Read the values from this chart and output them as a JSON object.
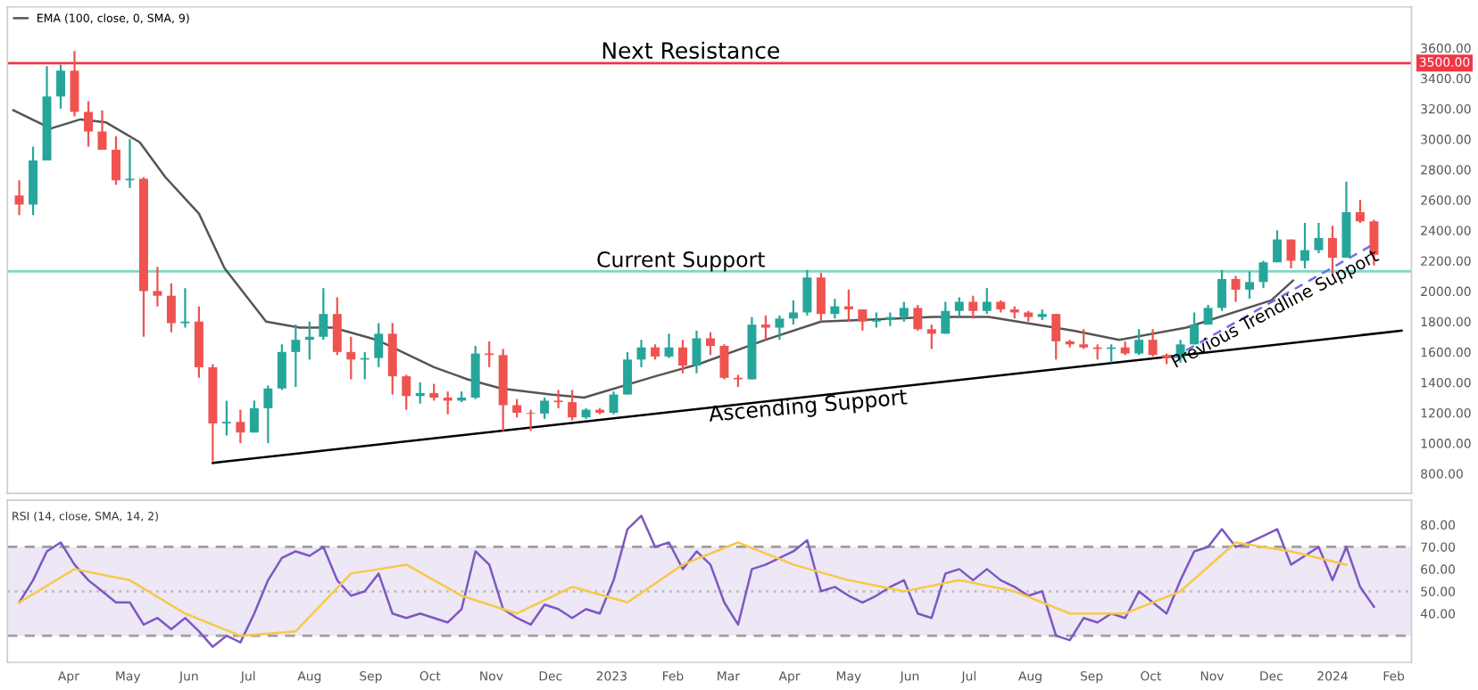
{
  "chart_data": [
    {
      "type": "candlestick",
      "x": [
        "2022-03-07",
        "2022-03-14",
        "2022-03-21",
        "2022-03-28",
        "2022-04-04",
        "2022-04-11",
        "2022-04-18",
        "2022-04-25",
        "2022-05-02",
        "2022-05-09",
        "2022-05-16",
        "2022-05-23",
        "2022-05-30",
        "2022-06-06",
        "2022-06-13",
        "2022-06-20",
        "2022-06-27",
        "2022-07-04",
        "2022-07-11",
        "2022-07-18",
        "2022-07-25",
        "2022-08-01",
        "2022-08-08",
        "2022-08-15",
        "2022-08-22",
        "2022-08-29",
        "2022-09-05",
        "2022-09-12",
        "2022-09-19",
        "2022-09-26",
        "2022-10-03",
        "2022-10-10",
        "2022-10-17",
        "2022-10-24",
        "2022-10-31",
        "2022-11-07",
        "2022-11-14",
        "2022-11-21",
        "2022-11-28",
        "2022-12-05",
        "2022-12-12",
        "2022-12-19",
        "2022-12-26",
        "2023-01-02",
        "2023-01-09",
        "2023-01-16",
        "2023-01-23",
        "2023-01-30",
        "2023-02-06",
        "2023-02-13",
        "2023-02-20",
        "2023-02-27",
        "2023-03-06",
        "2023-03-13",
        "2023-03-20",
        "2023-03-27",
        "2023-04-03",
        "2023-04-10",
        "2023-04-17",
        "2023-04-24",
        "2023-05-01",
        "2023-05-08",
        "2023-05-15",
        "2023-05-22",
        "2023-05-29",
        "2023-06-05",
        "2023-06-12",
        "2023-06-19",
        "2023-06-26",
        "2023-07-03",
        "2023-07-10",
        "2023-07-17",
        "2023-07-24",
        "2023-07-31",
        "2023-08-07",
        "2023-08-14",
        "2023-08-21",
        "2023-08-28",
        "2023-09-04",
        "2023-09-11",
        "2023-09-18",
        "2023-09-25",
        "2023-10-02",
        "2023-10-09",
        "2023-10-16",
        "2023-10-23",
        "2023-10-30",
        "2023-11-06",
        "2023-11-13",
        "2023-11-20",
        "2023-11-27",
        "2023-12-04",
        "2023-12-11",
        "2023-12-18",
        "2023-12-25",
        "2024-01-01",
        "2024-01-08",
        "2024-01-15",
        "2024-01-22"
      ],
      "ohlc": [
        [
          2630,
          2730,
          2500,
          2570
        ],
        [
          2570,
          2950,
          2500,
          2860
        ],
        [
          2860,
          3480,
          2860,
          3280
        ],
        [
          3280,
          3490,
          3200,
          3450
        ],
        [
          3450,
          3580,
          3150,
          3180
        ],
        [
          3180,
          3250,
          2950,
          3050
        ],
        [
          3050,
          3190,
          2930,
          2930
        ],
        [
          2930,
          3020,
          2700,
          2730
        ],
        [
          2730,
          3000,
          2680,
          2740
        ],
        [
          2740,
          2750,
          1700,
          2000
        ],
        [
          2000,
          2160,
          1900,
          1970
        ],
        [
          1970,
          2050,
          1730,
          1790
        ],
        [
          1790,
          2020,
          1760,
          1800
        ],
        [
          1800,
          1900,
          1430,
          1500
        ],
        [
          1500,
          1520,
          880,
          1130
        ],
        [
          1130,
          1280,
          1050,
          1140
        ],
        [
          1140,
          1220,
          1000,
          1070
        ],
        [
          1070,
          1280,
          1070,
          1230
        ],
        [
          1230,
          1380,
          1000,
          1360
        ],
        [
          1360,
          1650,
          1350,
          1600
        ],
        [
          1600,
          1780,
          1370,
          1680
        ],
        [
          1680,
          1800,
          1550,
          1700
        ],
        [
          1700,
          2020,
          1680,
          1850
        ],
        [
          1850,
          1960,
          1580,
          1600
        ],
        [
          1600,
          1700,
          1420,
          1550
        ],
        [
          1550,
          1600,
          1420,
          1560
        ],
        [
          1560,
          1790,
          1500,
          1720
        ],
        [
          1720,
          1790,
          1320,
          1440
        ],
        [
          1440,
          1450,
          1220,
          1310
        ],
        [
          1310,
          1400,
          1260,
          1330
        ],
        [
          1330,
          1390,
          1280,
          1300
        ],
        [
          1300,
          1340,
          1190,
          1280
        ],
        [
          1280,
          1340,
          1270,
          1300
        ],
        [
          1300,
          1640,
          1290,
          1590
        ],
        [
          1590,
          1670,
          1500,
          1580
        ],
        [
          1580,
          1620,
          1080,
          1250
        ],
        [
          1250,
          1290,
          1170,
          1200
        ],
        [
          1200,
          1220,
          1080,
          1195
        ],
        [
          1195,
          1300,
          1160,
          1280
        ],
        [
          1280,
          1350,
          1230,
          1270
        ],
        [
          1270,
          1350,
          1150,
          1170
        ],
        [
          1170,
          1230,
          1160,
          1220
        ],
        [
          1220,
          1230,
          1190,
          1200
        ],
        [
          1200,
          1340,
          1190,
          1320
        ],
        [
          1320,
          1600,
          1320,
          1550
        ],
        [
          1550,
          1680,
          1500,
          1630
        ],
        [
          1630,
          1650,
          1550,
          1570
        ],
        [
          1570,
          1720,
          1560,
          1630
        ],
        [
          1630,
          1680,
          1460,
          1510
        ],
        [
          1510,
          1740,
          1460,
          1690
        ],
        [
          1690,
          1730,
          1580,
          1640
        ],
        [
          1640,
          1650,
          1420,
          1430
        ],
        [
          1430,
          1450,
          1370,
          1420
        ],
        [
          1420,
          1830,
          1420,
          1780
        ],
        [
          1780,
          1840,
          1680,
          1760
        ],
        [
          1760,
          1840,
          1680,
          1820
        ],
        [
          1820,
          1940,
          1780,
          1860
        ],
        [
          1860,
          2140,
          1840,
          2090
        ],
        [
          2090,
          2120,
          1800,
          1850
        ],
        [
          1850,
          1950,
          1820,
          1900
        ],
        [
          1900,
          2010,
          1800,
          1880
        ],
        [
          1880,
          1880,
          1740,
          1800
        ],
        [
          1800,
          1860,
          1760,
          1810
        ],
        [
          1810,
          1860,
          1770,
          1830
        ],
        [
          1830,
          1930,
          1800,
          1890
        ],
        [
          1890,
          1910,
          1740,
          1750
        ],
        [
          1750,
          1780,
          1620,
          1720
        ],
        [
          1720,
          1930,
          1720,
          1870
        ],
        [
          1870,
          1960,
          1830,
          1930
        ],
        [
          1930,
          1970,
          1820,
          1870
        ],
        [
          1870,
          2020,
          1850,
          1930
        ],
        [
          1930,
          1940,
          1860,
          1880
        ],
        [
          1880,
          1900,
          1820,
          1860
        ],
        [
          1860,
          1870,
          1800,
          1830
        ],
        [
          1830,
          1880,
          1810,
          1850
        ],
        [
          1850,
          1850,
          1550,
          1670
        ],
        [
          1670,
          1680,
          1630,
          1650
        ],
        [
          1650,
          1750,
          1620,
          1630
        ],
        [
          1630,
          1650,
          1550,
          1620
        ],
        [
          1620,
          1650,
          1530,
          1630
        ],
        [
          1630,
          1670,
          1580,
          1590
        ],
        [
          1590,
          1750,
          1580,
          1680
        ],
        [
          1680,
          1750,
          1570,
          1580
        ],
        [
          1580,
          1590,
          1520,
          1560
        ],
        [
          1560,
          1680,
          1530,
          1650
        ],
        [
          1650,
          1860,
          1650,
          1780
        ],
        [
          1780,
          1910,
          1780,
          1890
        ],
        [
          1890,
          2140,
          1870,
          2080
        ],
        [
          2080,
          2100,
          1930,
          2010
        ],
        [
          2010,
          2130,
          1950,
          2060
        ],
        [
          2060,
          2200,
          2020,
          2190
        ],
        [
          2190,
          2400,
          2190,
          2340
        ],
        [
          2340,
          2340,
          2150,
          2200
        ],
        [
          2200,
          2450,
          2150,
          2270
        ],
        [
          2270,
          2450,
          2250,
          2350
        ],
        [
          2350,
          2430,
          2100,
          2220
        ],
        [
          2220,
          2720,
          2220,
          2520
        ],
        [
          2520,
          2600,
          2450,
          2460
        ],
        [
          2460,
          2470,
          2170,
          2240
        ]
      ],
      "colors": [
        "#ef5350",
        "#26a69a",
        "#26a69a",
        "#26a69a",
        "#ef5350",
        "#ef5350",
        "#ef5350",
        "#ef5350",
        "#26a69a",
        "#ef5350",
        "#ef5350",
        "#ef5350",
        "#26a69a",
        "#ef5350",
        "#ef5350",
        "#26a69a",
        "#ef5350",
        "#26a69a",
        "#26a69a",
        "#26a69a",
        "#26a69a",
        "#26a69a",
        "#26a69a",
        "#ef5350",
        "#ef5350",
        "#26a69a",
        "#26a69a",
        "#ef5350",
        "#ef5350",
        "#26a69a",
        "#ef5350",
        "#ef5350",
        "#26a69a",
        "#26a69a",
        "#ef5350",
        "#ef5350",
        "#ef5350",
        "#ef5350",
        "#26a69a",
        "#ef5350",
        "#ef5350",
        "#26a69a",
        "#ef5350",
        "#26a69a",
        "#26a69a",
        "#26a69a",
        "#ef5350",
        "#26a69a",
        "#ef5350",
        "#26a69a",
        "#ef5350",
        "#ef5350",
        "#ef5350",
        "#26a69a",
        "#ef5350",
        "#26a69a",
        "#26a69a",
        "#26a69a",
        "#ef5350",
        "#26a69a",
        "#ef5350",
        "#ef5350",
        "#26a69a",
        "#26a69a",
        "#26a69a",
        "#ef5350",
        "#ef5350",
        "#26a69a",
        "#26a69a",
        "#ef5350",
        "#26a69a",
        "#ef5350",
        "#ef5350",
        "#ef5350",
        "#26a69a",
        "#ef5350",
        "#ef5350",
        "#ef5350",
        "#ef5350",
        "#26a69a",
        "#ef5350",
        "#26a69a",
        "#ef5350",
        "#ef5350",
        "#26a69a",
        "#26a69a",
        "#26a69a",
        "#26a69a",
        "#ef5350",
        "#26a69a",
        "#26a69a",
        "#26a69a",
        "#ef5350",
        "#26a69a",
        "#26a69a",
        "#ef5350",
        "#26a69a",
        "#ef5350",
        "#ef5350"
      ],
      "series": [
        {
          "type": "line",
          "name": "EMA (100, close, 0, SMA, 9)",
          "color": "#555555",
          "x": [
            "2022-03-04",
            "2022-03-23",
            "2022-04-07",
            "2022-04-20",
            "2022-05-07",
            "2022-05-20",
            "2022-06-06",
            "2022-06-19",
            "2022-07-10",
            "2022-07-27",
            "2022-08-13",
            "2022-09-04",
            "2022-10-03",
            "2022-10-20",
            "2022-11-06",
            "2022-12-01",
            "2022-12-18",
            "2023-01-23",
            "2023-02-14",
            "2023-03-20",
            "2023-04-17",
            "2023-06-13",
            "2023-07-11",
            "2023-08-23",
            "2023-09-15",
            "2023-10-19",
            "2023-12-01",
            "2023-12-12"
          ],
          "values": [
            3190,
            3070,
            3130,
            3110,
            2980,
            2750,
            2510,
            2150,
            1800,
            1760,
            1760,
            1680,
            1500,
            1420,
            1360,
            1320,
            1300,
            1440,
            1520,
            1680,
            1800,
            1830,
            1830,
            1740,
            1680,
            1760,
            1940,
            2070
          ]
        },
        {
          "type": "line",
          "color": "#000000",
          "x": [
            "2022-06-13",
            "2024-02-05"
          ],
          "values": [
            870,
            1740
          ]
        },
        {
          "type": "line",
          "color": "#6f6fe0",
          "line_style": "dashed",
          "x": [
            "2023-10-12",
            "2024-01-22"
          ],
          "values": [
            1560,
            2310
          ]
        }
      ],
      "ref_lines": [
        {
          "axis": "y",
          "value": 3500,
          "label": "3500.00",
          "color": "#f23645"
        },
        {
          "axis": "y",
          "value": 2130,
          "color": "#7fd6c4"
        }
      ],
      "annotations": [
        {
          "text": "Next Resistance",
          "x": "2023-02-10",
          "y": 3500
        },
        {
          "text": "Current Support",
          "x": "2023-02-05",
          "y": 2130
        },
        {
          "text": "Ascending Support",
          "x": "2023-04-10",
          "y": 1305
        },
        {
          "text": "Previous Trendline Support",
          "x": "2023-12-01",
          "y": 1926
        }
      ],
      "xlim": [
        "2022-03-01",
        "2024-02-10"
      ],
      "ylim": [
        670,
        3870
      ],
      "yticks": [
        {
          "value": 800,
          "label": "800.00"
        },
        {
          "value": 1000,
          "label": "1000.00"
        },
        {
          "value": 1200,
          "label": "1200.00"
        },
        {
          "value": 1400,
          "label": "1400.00"
        },
        {
          "value": 1600,
          "label": "1600.00"
        },
        {
          "value": 1800,
          "label": "1800.00"
        },
        {
          "value": 2000,
          "label": "2000.00"
        },
        {
          "value": 2200,
          "label": "2200.00"
        },
        {
          "value": 2400,
          "label": "2400.00"
        },
        {
          "value": 2600,
          "label": "2600.00"
        },
        {
          "value": 2800,
          "label": "2800.00"
        },
        {
          "value": 3000,
          "label": "3000.00"
        },
        {
          "value": 3200,
          "label": "3200.00"
        },
        {
          "value": 3400,
          "label": "3400.00"
        },
        {
          "value": 3600,
          "label": "3600.00"
        }
      ],
      "tick_labels": "y",
      "legend": "top left"
    },
    {
      "type": "line",
      "title": "RSI (14, close, SMA, 14, 2)",
      "x": [
        "2022-03-07",
        "2022-03-14",
        "2022-03-21",
        "2022-03-28",
        "2022-04-04",
        "2022-04-11",
        "2022-04-18",
        "2022-04-25",
        "2022-05-02",
        "2022-05-09",
        "2022-05-16",
        "2022-05-23",
        "2022-05-30",
        "2022-06-06",
        "2022-06-13",
        "2022-06-20",
        "2022-06-27",
        "2022-07-04",
        "2022-07-11",
        "2022-07-18",
        "2022-07-25",
        "2022-08-01",
        "2022-08-08",
        "2022-08-15",
        "2022-08-22",
        "2022-08-29",
        "2022-09-05",
        "2022-09-12",
        "2022-09-19",
        "2022-09-26",
        "2022-10-03",
        "2022-10-10",
        "2022-10-17",
        "2022-10-24",
        "2022-10-31",
        "2022-11-07",
        "2022-11-14",
        "2022-11-21",
        "2022-11-28",
        "2022-12-05",
        "2022-12-12",
        "2022-12-19",
        "2022-12-26",
        "2023-01-02",
        "2023-01-09",
        "2023-01-16",
        "2023-01-23",
        "2023-01-30",
        "2023-02-06",
        "2023-02-13",
        "2023-02-20",
        "2023-02-27",
        "2023-03-06",
        "2023-03-13",
        "2023-03-20",
        "2023-03-27",
        "2023-04-03",
        "2023-04-10",
        "2023-04-17",
        "2023-04-24",
        "2023-05-01",
        "2023-05-08",
        "2023-05-15",
        "2023-05-22",
        "2023-05-29",
        "2023-06-05",
        "2023-06-12",
        "2023-06-19",
        "2023-06-26",
        "2023-07-03",
        "2023-07-10",
        "2023-07-17",
        "2023-07-24",
        "2023-07-31",
        "2023-08-07",
        "2023-08-14",
        "2023-08-21",
        "2023-08-28",
        "2023-09-04",
        "2023-09-11",
        "2023-09-18",
        "2023-09-25",
        "2023-10-02",
        "2023-10-09",
        "2023-10-16",
        "2023-10-23",
        "2023-10-30",
        "2023-11-06",
        "2023-11-13",
        "2023-11-20",
        "2023-11-27",
        "2023-12-04",
        "2023-12-11",
        "2023-12-18",
        "2023-12-25",
        "2024-01-01",
        "2024-01-08",
        "2024-01-15",
        "2024-01-22"
      ],
      "series": [
        {
          "color": "#7e57c2",
          "values": [
            45,
            55,
            68,
            72,
            62,
            55,
            50,
            45,
            45,
            35,
            38,
            33,
            38,
            32,
            25,
            30,
            27,
            40,
            55,
            65,
            68,
            66,
            70,
            55,
            48,
            50,
            58,
            40,
            38,
            40,
            38,
            36,
            42,
            68,
            62,
            42,
            38,
            35,
            44,
            42,
            38,
            42,
            40,
            55,
            78,
            84,
            70,
            72,
            60,
            68,
            62,
            45,
            35,
            60,
            62,
            65,
            68,
            73,
            50,
            52,
            48,
            45,
            48,
            52,
            55,
            40,
            38,
            58,
            60,
            55,
            60,
            55,
            52,
            48,
            50,
            30,
            28,
            38,
            36,
            40,
            38,
            50,
            45,
            40,
            55,
            68,
            70,
            78,
            70,
            72,
            75,
            78,
            62,
            66,
            70,
            55,
            70,
            52,
            43
          ]
        },
        {
          "color": "#f7c948",
          "x": [
            "2022-03-07",
            "2022-04-04",
            "2022-05-02",
            "2022-05-30",
            "2022-06-27",
            "2022-07-25",
            "2022-08-22",
            "2022-09-19",
            "2022-10-17",
            "2022-11-14",
            "2022-12-12",
            "2023-01-09",
            "2023-02-06",
            "2023-03-06",
            "2023-04-03",
            "2023-05-01",
            "2023-05-29",
            "2023-06-26",
            "2023-07-24",
            "2023-08-21",
            "2023-09-18",
            "2023-10-16",
            "2023-11-13",
            "2023-12-11",
            "2024-01-08"
          ],
          "values": [
            45,
            60,
            55,
            40,
            30,
            32,
            58,
            62,
            48,
            40,
            52,
            45,
            62,
            72,
            62,
            55,
            50,
            55,
            50,
            40,
            40,
            50,
            72,
            68,
            62
          ]
        }
      ],
      "bands": [
        {
          "axis": "y",
          "from": 30,
          "to": 70,
          "color": "#ede7f6"
        }
      ],
      "ref_lines": [
        {
          "axis": "y",
          "value": 70,
          "color": "#9e9e9e",
          "line_style": "dashed"
        },
        {
          "axis": "y",
          "value": 50,
          "color": "#bdbdbd",
          "line_style": "dotted"
        },
        {
          "axis": "y",
          "value": 30,
          "color": "#9e9e9e",
          "line_style": "dashed"
        }
      ],
      "xlim": [
        "2022-03-01",
        "2024-02-10"
      ],
      "xticks": [
        {
          "value": "2022-04-01",
          "label": "Apr"
        },
        {
          "value": "2022-05-01",
          "label": "May"
        },
        {
          "value": "2022-06-01",
          "label": "Jun"
        },
        {
          "value": "2022-07-01",
          "label": "Jul"
        },
        {
          "value": "2022-08-01",
          "label": "Aug"
        },
        {
          "value": "2022-09-01",
          "label": "Sep"
        },
        {
          "value": "2022-10-01",
          "label": "Oct"
        },
        {
          "value": "2022-11-01",
          "label": "Nov"
        },
        {
          "value": "2022-12-01",
          "label": "Dec"
        },
        {
          "value": "2023-01-01",
          "label": "2023"
        },
        {
          "value": "2023-02-01",
          "label": "Feb"
        },
        {
          "value": "2023-03-01",
          "label": "Mar"
        },
        {
          "value": "2023-04-01",
          "label": "Apr"
        },
        {
          "value": "2023-05-01",
          "label": "May"
        },
        {
          "value": "2023-06-01",
          "label": "Jun"
        },
        {
          "value": "2023-07-01",
          "label": "Jul"
        },
        {
          "value": "2023-08-01",
          "label": "Aug"
        },
        {
          "value": "2023-09-01",
          "label": "Sep"
        },
        {
          "value": "2023-10-01",
          "label": "Oct"
        },
        {
          "value": "2023-11-01",
          "label": "Nov"
        },
        {
          "value": "2023-12-01",
          "label": "Dec"
        },
        {
          "value": "2024-01-01",
          "label": "2024"
        },
        {
          "value": "2024-02-01",
          "label": "Feb"
        }
      ],
      "ylim": [
        18,
        91
      ],
      "yticks": [
        {
          "value": 40,
          "label": "40.00"
        },
        {
          "value": 50,
          "label": "50.00"
        },
        {
          "value": 60,
          "label": "60.00"
        },
        {
          "value": 70,
          "label": "70.00"
        },
        {
          "value": 80,
          "label": "80.00"
        }
      ]
    }
  ]
}
